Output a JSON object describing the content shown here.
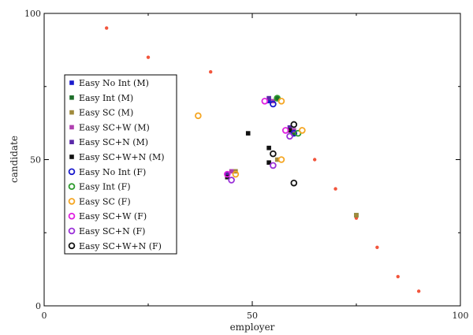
{
  "chart_data": {
    "type": "scatter",
    "xlabel": "employer",
    "ylabel": "candidate",
    "xlim": [
      0,
      100
    ],
    "ylim": [
      0,
      100
    ],
    "xticks": [
      0,
      50,
      100
    ],
    "yticks": [
      0,
      50,
      100
    ],
    "grid": false,
    "legend_position": "left",
    "reference_points": {
      "color": "#f2553c",
      "points": [
        [
          15,
          95
        ],
        [
          25,
          85
        ],
        [
          40,
          80
        ],
        [
          65,
          50
        ],
        [
          70,
          40
        ],
        [
          75,
          30
        ],
        [
          80,
          20
        ],
        [
          85,
          10
        ],
        [
          90,
          5
        ]
      ]
    },
    "series": [
      {
        "name": "Easy No Int (M)",
        "marker": "square",
        "color": "#1a1acc",
        "points": [
          [
            54,
            70
          ],
          [
            60,
            60
          ]
        ]
      },
      {
        "name": "Easy Int (M)",
        "marker": "square",
        "color": "#1e6e2a",
        "points": [
          [
            56,
            71
          ],
          [
            60,
            59
          ],
          [
            75,
            31
          ]
        ]
      },
      {
        "name": "Easy SC (M)",
        "marker": "square",
        "color": "#a08a3c",
        "points": [
          [
            46,
            46
          ],
          [
            56,
            50
          ],
          [
            75,
            31
          ]
        ]
      },
      {
        "name": "Easy SC+W (M)",
        "marker": "square",
        "color": "#b040b0",
        "points": [
          [
            45,
            46
          ],
          [
            55,
            70
          ],
          [
            60,
            60
          ]
        ]
      },
      {
        "name": "Easy SC+N (M)",
        "marker": "square",
        "color": "#5a28a8",
        "points": [
          [
            44,
            45
          ],
          [
            54,
            71
          ],
          [
            59,
            61
          ]
        ]
      },
      {
        "name": "Easy SC+W+N (M)",
        "marker": "square",
        "color": "#111111",
        "points": [
          [
            44,
            44
          ],
          [
            49,
            59
          ],
          [
            54,
            54
          ],
          [
            54,
            49
          ],
          [
            59,
            60
          ]
        ]
      },
      {
        "name": "Easy No Int (F)",
        "marker": "circle",
        "color": "#1a1acc",
        "points": [
          [
            55,
            69
          ],
          [
            60,
            59
          ]
        ]
      },
      {
        "name": "Easy Int (F)",
        "marker": "circle",
        "color": "#2e9c2e",
        "points": [
          [
            56,
            71
          ],
          [
            61,
            59
          ]
        ]
      },
      {
        "name": "Easy SC (F)",
        "marker": "circle",
        "color": "#f5a623",
        "points": [
          [
            37,
            65
          ],
          [
            46,
            45
          ],
          [
            57,
            70
          ],
          [
            62,
            60
          ],
          [
            57,
            50
          ]
        ]
      },
      {
        "name": "Easy SC+W (F)",
        "marker": "circle",
        "color": "#e020e0",
        "points": [
          [
            53,
            70
          ],
          [
            58,
            60
          ],
          [
            44,
            45
          ]
        ]
      },
      {
        "name": "Easy SC+N (F)",
        "marker": "circle",
        "color": "#9a30d8",
        "points": [
          [
            45,
            43
          ],
          [
            55,
            48
          ],
          [
            59,
            58
          ]
        ]
      },
      {
        "name": "Easy SC+W+N (F)",
        "marker": "circle",
        "color": "#111111",
        "points": [
          [
            55,
            52
          ],
          [
            60,
            62
          ],
          [
            60,
            42
          ]
        ]
      }
    ]
  }
}
